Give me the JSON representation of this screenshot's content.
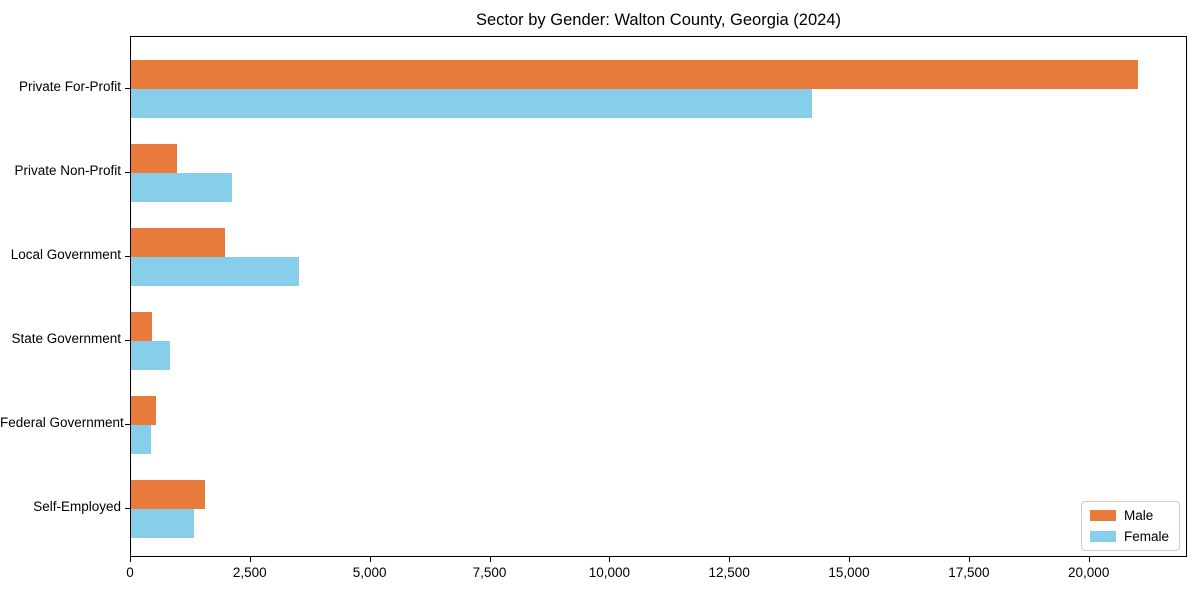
{
  "chart_data": {
    "type": "bar",
    "orientation": "horizontal",
    "title": "Sector by Gender: Walton County, Georgia (2024)",
    "categories": [
      "Private For-Profit",
      "Private Non-Profit",
      "Local Government",
      "State Government",
      "Federal Government",
      "Self-Employed"
    ],
    "series": [
      {
        "name": "Male",
        "color": "#e87b3c",
        "values": [
          21000,
          950,
          1950,
          430,
          530,
          1540
        ]
      },
      {
        "name": "Female",
        "color": "#87ceeb",
        "values": [
          14200,
          2100,
          3500,
          810,
          410,
          1310
        ]
      }
    ],
    "xlabel": "",
    "ylabel": "",
    "xlim": [
      0,
      22050
    ],
    "xticks": {
      "values": [
        0,
        2500,
        5000,
        7500,
        10000,
        12500,
        15000,
        17500,
        20000
      ],
      "labels": [
        "0",
        "2,500",
        "5,000",
        "7,500",
        "10,000",
        "12,500",
        "15,000",
        "17,500",
        "20,000"
      ]
    },
    "legend_position": "lower right",
    "grid": false,
    "frame_color": "#000000",
    "background_color": "#ffffff"
  }
}
